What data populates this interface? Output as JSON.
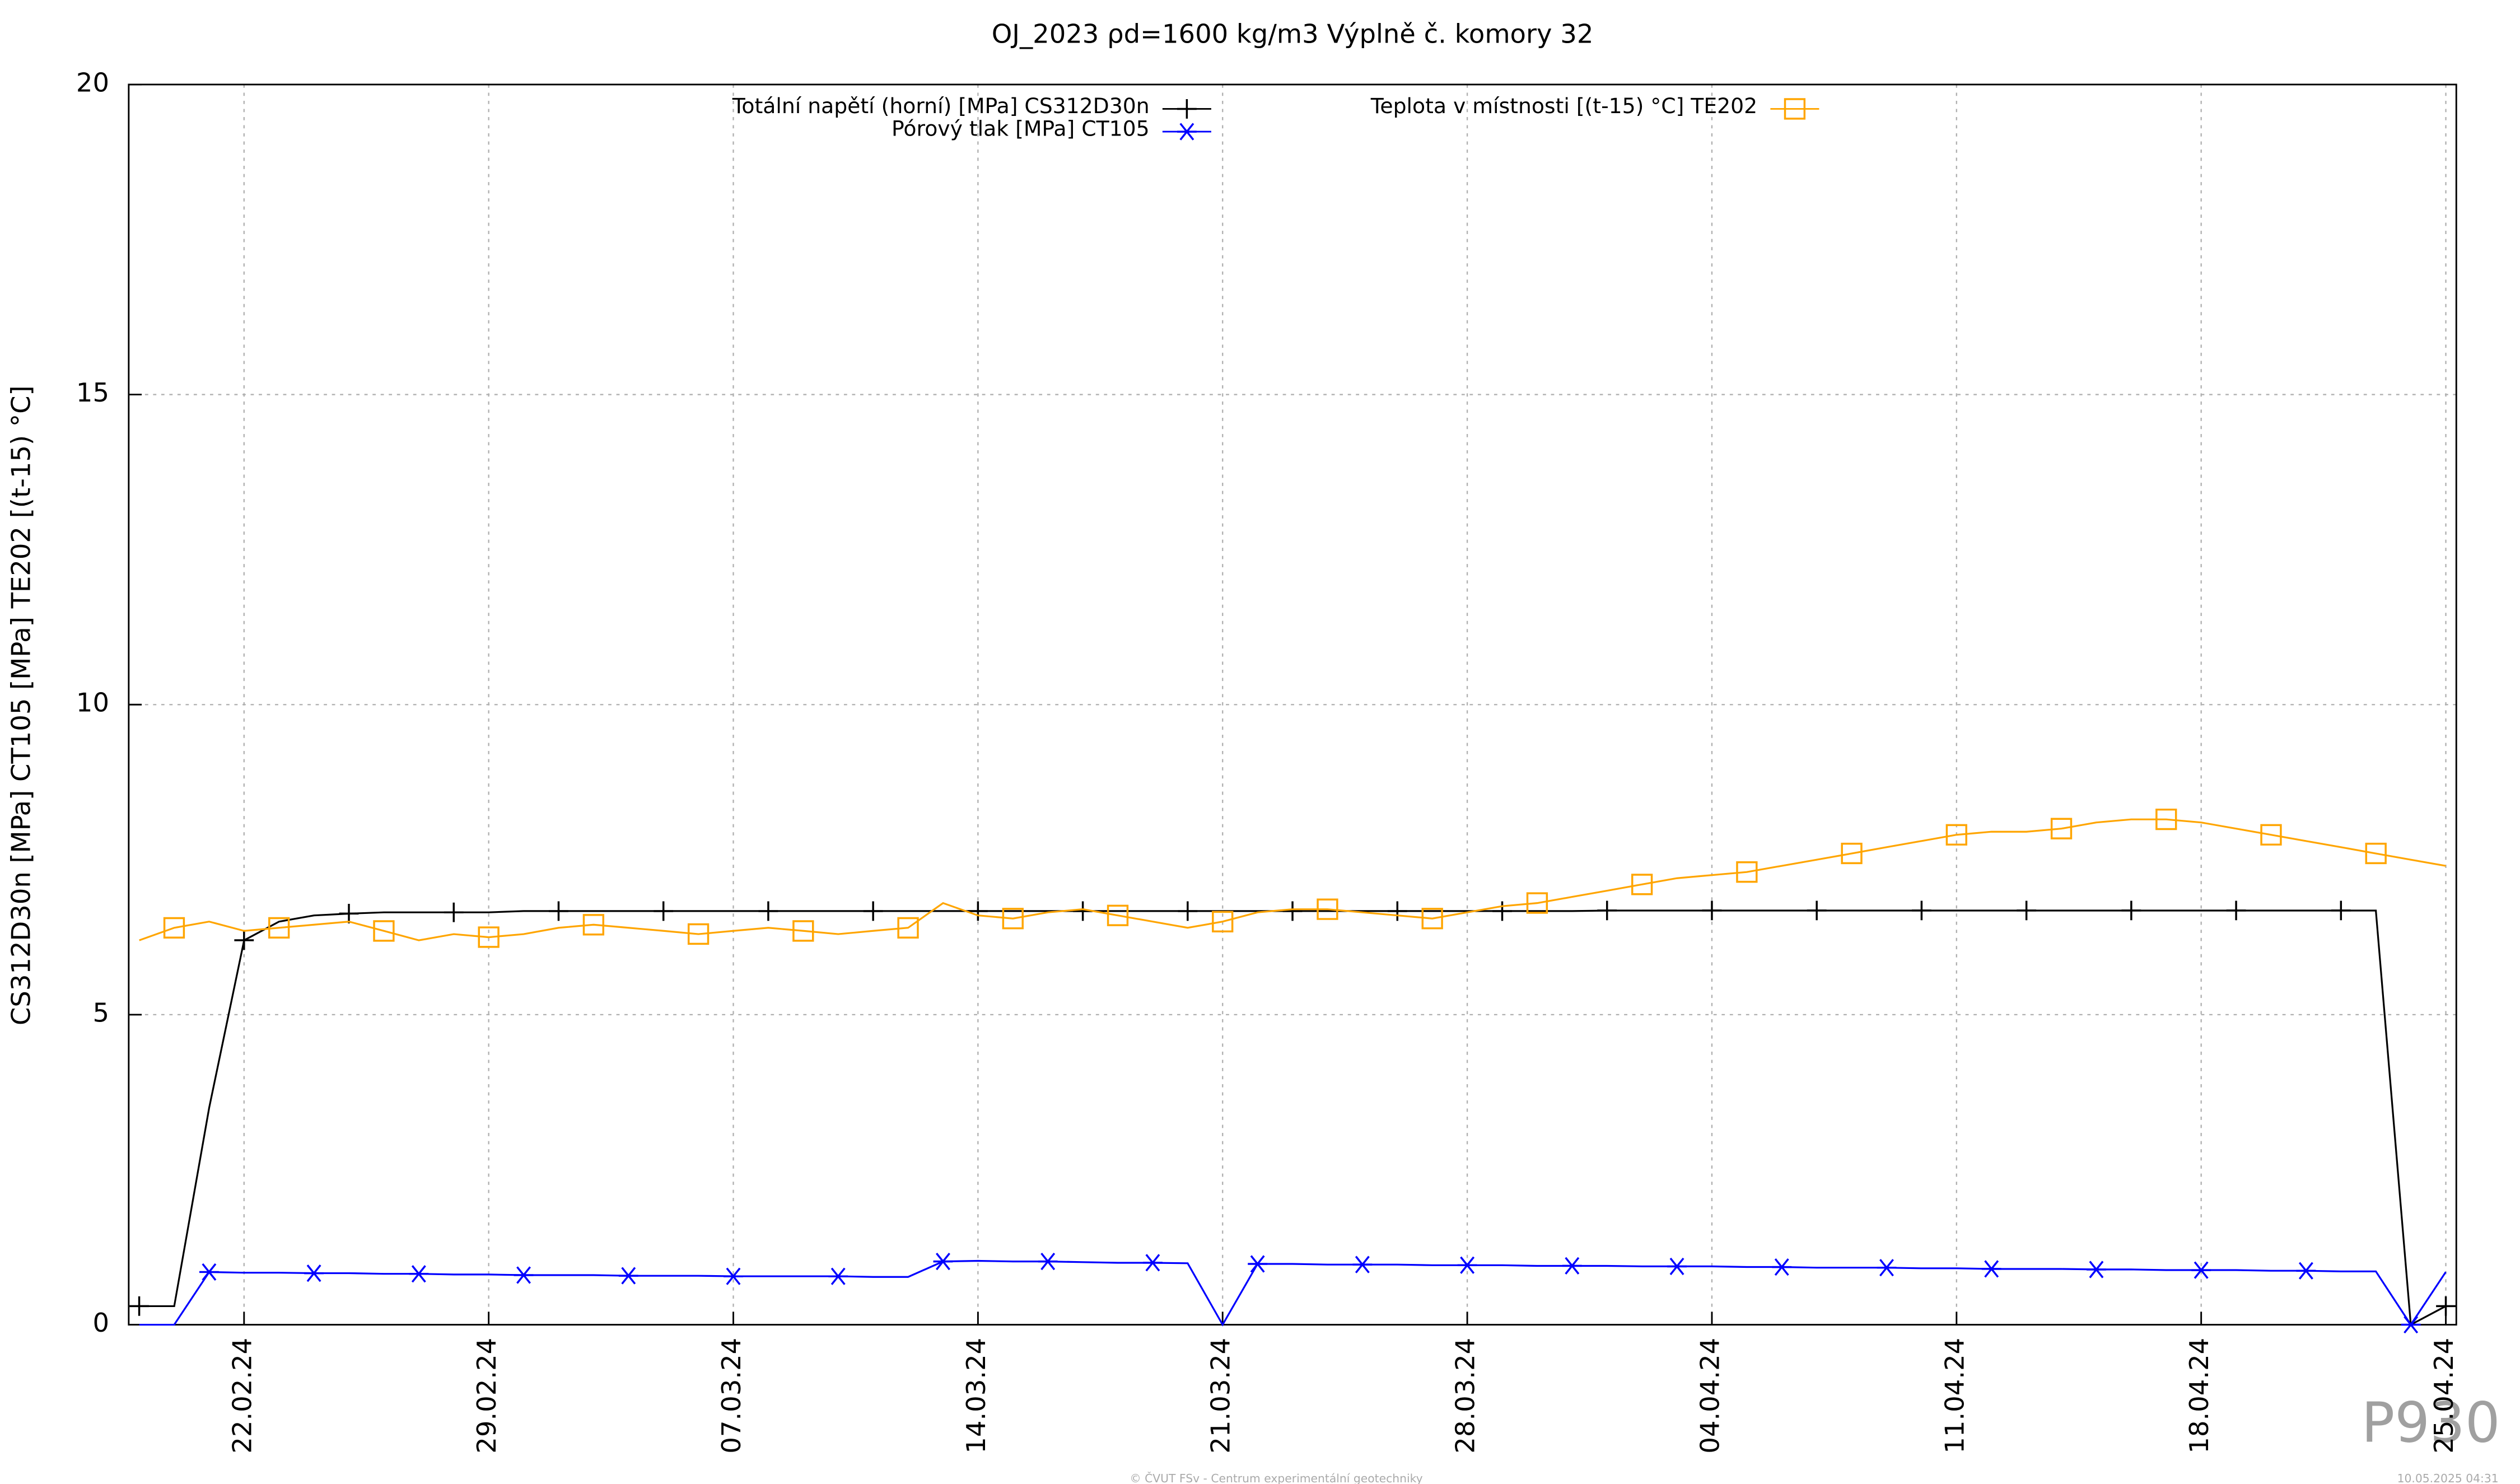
{
  "chart_data": {
    "type": "line",
    "title": "OJ_2023 ρd=1600 kg/m3 Výplně č. komory 32",
    "y_label": "CS312D30n [MPa] CT105 [MPa] TE202 [(t-15) °C]",
    "x": [
      "19.02.24",
      "20.02.24",
      "21.02.24",
      "22.02.24",
      "23.02.24",
      "24.02.24",
      "25.02.24",
      "26.02.24",
      "27.02.24",
      "28.02.24",
      "29.02.24",
      "01.03.24",
      "02.03.24",
      "03.03.24",
      "04.03.24",
      "05.03.24",
      "06.03.24",
      "07.03.24",
      "08.03.24",
      "09.03.24",
      "10.03.24",
      "11.03.24",
      "12.03.24",
      "13.03.24",
      "14.03.24",
      "15.03.24",
      "16.03.24",
      "17.03.24",
      "18.03.24",
      "19.03.24",
      "20.03.24",
      "21.03.24",
      "22.03.24",
      "23.03.24",
      "24.03.24",
      "25.03.24",
      "26.03.24",
      "27.03.24",
      "28.03.24",
      "29.03.24",
      "30.03.24",
      "31.03.24",
      "01.04.24",
      "02.04.24",
      "03.04.24",
      "04.04.24",
      "05.04.24",
      "06.04.24",
      "07.04.24",
      "08.04.24",
      "09.04.24",
      "10.04.24",
      "11.04.24",
      "12.04.24",
      "13.04.24",
      "14.04.24",
      "15.04.24",
      "16.04.24",
      "17.04.24",
      "18.04.24",
      "19.04.24",
      "20.04.24",
      "21.04.24",
      "22.04.24",
      "23.04.24",
      "24.04.24",
      "25.04.24"
    ],
    "xlim": [
      "19.02.24",
      "25.04.24"
    ],
    "xticks": [
      "22.02.24",
      "29.02.24",
      "07.03.24",
      "14.03.24",
      "21.03.24",
      "28.03.24",
      "04.04.24",
      "11.04.24",
      "18.04.24",
      "25.04.24"
    ],
    "ylim": [
      0,
      20
    ],
    "yticks": [
      0,
      5,
      10,
      15,
      20
    ],
    "grid": true,
    "series": [
      {
        "name": "Totální napětí (horní) [MPa] CS312D30n",
        "color": "#000000",
        "marker": "plus",
        "values": [
          0.3,
          0.3,
          3.5,
          6.2,
          6.5,
          6.6,
          6.63,
          6.65,
          6.65,
          6.65,
          6.65,
          6.67,
          6.67,
          6.67,
          6.67,
          6.67,
          6.67,
          6.67,
          6.67,
          6.67,
          6.67,
          6.67,
          6.67,
          6.67,
          6.67,
          6.67,
          6.67,
          6.67,
          6.67,
          6.67,
          6.67,
          6.67,
          6.67,
          6.67,
          6.67,
          6.67,
          6.67,
          6.67,
          6.67,
          6.67,
          6.67,
          6.67,
          6.68,
          6.68,
          6.68,
          6.68,
          6.68,
          6.68,
          6.68,
          6.68,
          6.68,
          6.68,
          6.68,
          6.68,
          6.68,
          6.68,
          6.68,
          6.68,
          6.68,
          6.68,
          6.68,
          6.68,
          6.68,
          6.68,
          6.68,
          0,
          0.3
        ]
      },
      {
        "name": "Pórový tlak [MPa] CT105",
        "color": "#0000ff",
        "marker": "asterisk",
        "values": [
          0,
          0,
          0.85,
          0.84,
          0.84,
          0.83,
          0.83,
          0.82,
          0.82,
          0.81,
          0.81,
          0.8,
          0.8,
          0.8,
          0.79,
          0.79,
          0.79,
          0.78,
          0.78,
          0.78,
          0.78,
          0.77,
          0.77,
          1.02,
          1.03,
          1.02,
          1.02,
          1.01,
          1.0,
          1.0,
          0.99,
          0,
          0.98,
          0.98,
          0.97,
          0.97,
          0.97,
          0.96,
          0.96,
          0.96,
          0.95,
          0.95,
          0.95,
          0.94,
          0.94,
          0.94,
          0.93,
          0.93,
          0.92,
          0.92,
          0.92,
          0.91,
          0.91,
          0.9,
          0.9,
          0.9,
          0.89,
          0.89,
          0.88,
          0.88,
          0.88,
          0.87,
          0.87,
          0.86,
          0.86,
          0,
          0.85
        ]
      },
      {
        "name": "Teplota v místnosti [(t-15) °C] TE202",
        "color": "#ffa500",
        "marker": "square",
        "values": [
          6.2,
          6.4,
          6.5,
          6.35,
          6.4,
          6.45,
          6.5,
          6.35,
          6.2,
          6.3,
          6.25,
          6.3,
          6.4,
          6.45,
          6.4,
          6.35,
          6.3,
          6.35,
          6.4,
          6.35,
          6.3,
          6.35,
          6.4,
          6.8,
          6.6,
          6.55,
          6.65,
          6.7,
          6.6,
          6.5,
          6.4,
          6.5,
          6.65,
          6.7,
          6.7,
          6.65,
          6.6,
          6.55,
          6.65,
          6.75,
          6.8,
          6.9,
          7.0,
          7.1,
          7.2,
          7.25,
          7.3,
          7.4,
          7.5,
          7.6,
          7.7,
          7.8,
          7.9,
          7.95,
          7.95,
          8.0,
          8.1,
          8.15,
          8.15,
          8.1,
          8.0,
          7.9,
          7.8,
          7.7,
          7.6,
          7.5,
          7.4
        ]
      }
    ],
    "watermark": "P930",
    "footer": "© ČVUT FSv - Centrum experimentální geotechniky",
    "timestamp": "10.05.2025 04:31"
  }
}
